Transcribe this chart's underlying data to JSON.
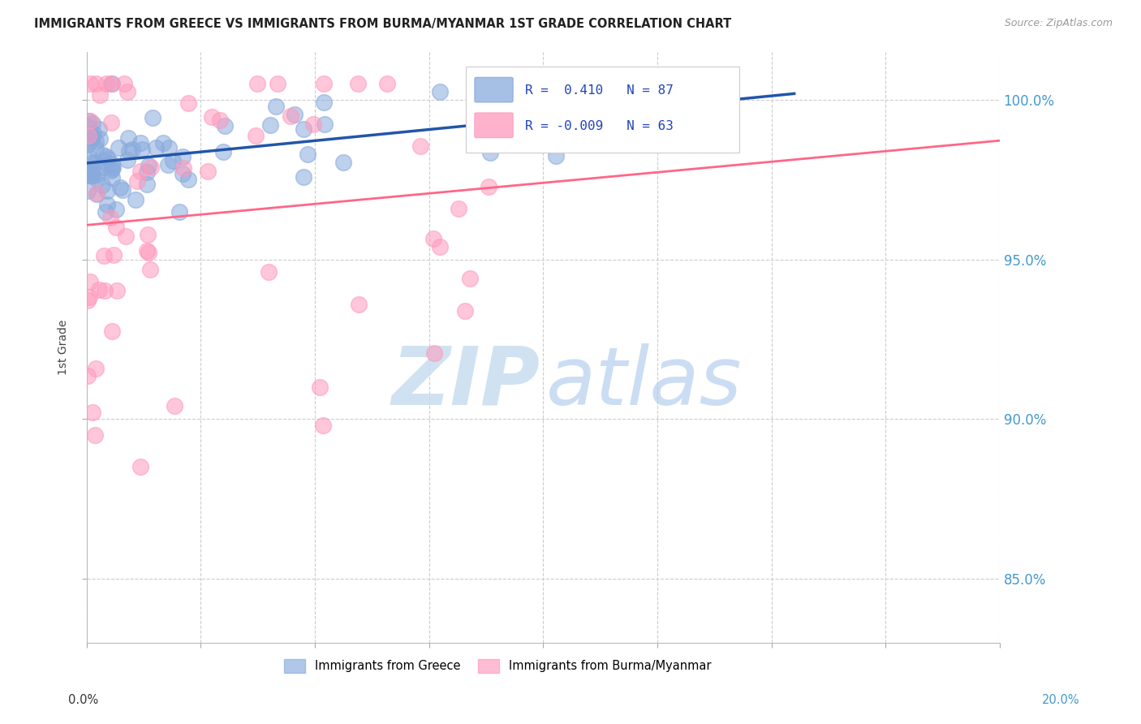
{
  "title": "IMMIGRANTS FROM GREECE VS IMMIGRANTS FROM BURMA/MYANMAR 1ST GRADE CORRELATION CHART",
  "source": "Source: ZipAtlas.com",
  "ylabel": "1st Grade",
  "xlim": [
    0.0,
    20.0
  ],
  "ylim": [
    83.0,
    101.5
  ],
  "yticks": [
    85.0,
    90.0,
    95.0,
    100.0
  ],
  "ytick_labels": [
    "85.0%",
    "90.0%",
    "95.0%",
    "100.0%"
  ],
  "greece_R": 0.41,
  "greece_N": 87,
  "burma_R": -0.009,
  "burma_N": 63,
  "greece_color": "#88AADD",
  "burma_color": "#FF99BB",
  "greece_line_color": "#2255AA",
  "burma_line_color": "#FF6688",
  "watermark_zip_color": "#C8DDEF",
  "watermark_atlas_color": "#B0CCEE",
  "background_color": "#FFFFFF",
  "greece_seed": 42,
  "burma_seed": 99
}
